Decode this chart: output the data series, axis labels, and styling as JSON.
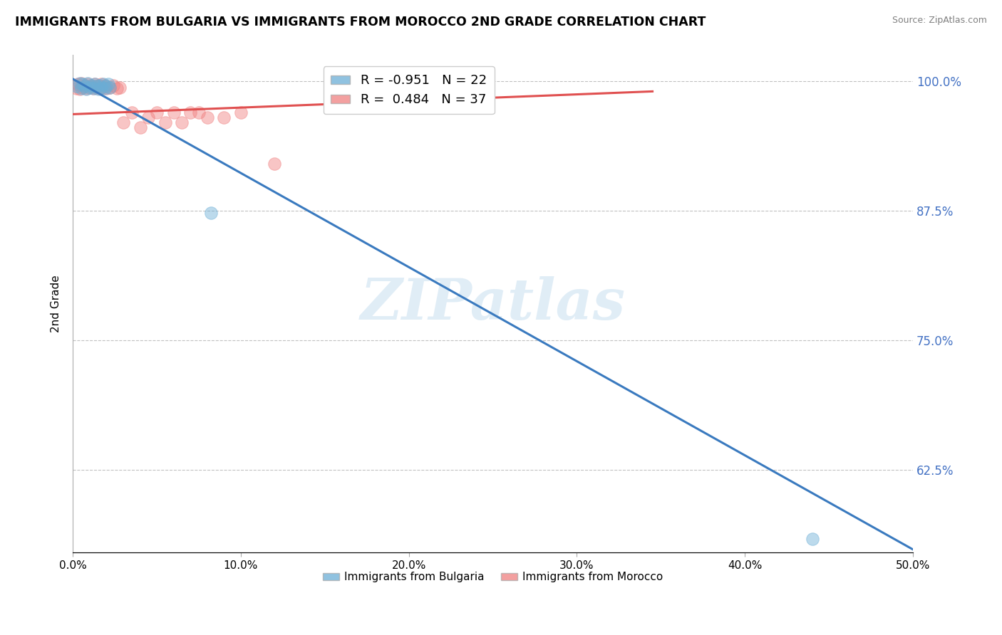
{
  "title": "IMMIGRANTS FROM BULGARIA VS IMMIGRANTS FROM MOROCCO 2ND GRADE CORRELATION CHART",
  "source": "Source: ZipAtlas.com",
  "ylabel": "2nd Grade",
  "xlim": [
    0.0,
    0.5
  ],
  "ylim": [
    0.545,
    1.025
  ],
  "yticks": [
    0.625,
    0.75,
    0.875,
    1.0
  ],
  "ytick_labels": [
    "62.5%",
    "75.0%",
    "87.5%",
    "100.0%"
  ],
  "xticks": [
    0.0,
    0.1,
    0.2,
    0.3,
    0.4,
    0.5
  ],
  "xtick_labels": [
    "0.0%",
    "10.0%",
    "20.0%",
    "30.0%",
    "40.0%",
    "50.0%"
  ],
  "bulgaria_R": -0.951,
  "bulgaria_N": 22,
  "morocco_R": 0.484,
  "morocco_N": 37,
  "bulgaria_color": "#6baed6",
  "morocco_color": "#f08080",
  "bulgaria_line_color": "#3a7abf",
  "morocco_line_color": "#e05050",
  "watermark": "ZIPatlas",
  "legend_label_bulgaria": "Immigrants from Bulgaria",
  "legend_label_morocco": "Immigrants from Morocco",
  "bulgaria_x": [
    0.002,
    0.004,
    0.005,
    0.006,
    0.007,
    0.008,
    0.009,
    0.01,
    0.011,
    0.012,
    0.013,
    0.014,
    0.015,
    0.016,
    0.017,
    0.018,
    0.019,
    0.02,
    0.021,
    0.022,
    0.082,
    0.44
  ],
  "bulgaria_y": [
    0.995,
    0.998,
    0.993,
    0.997,
    0.995,
    0.992,
    0.998,
    0.994,
    0.996,
    0.993,
    0.997,
    0.995,
    0.992,
    0.996,
    0.994,
    0.997,
    0.993,
    0.995,
    0.997,
    0.994,
    0.873,
    0.558
  ],
  "bulgaria_line_x": [
    0.0,
    0.5
  ],
  "bulgaria_line_y": [
    1.002,
    0.548
  ],
  "morocco_x": [
    0.002,
    0.003,
    0.004,
    0.005,
    0.006,
    0.007,
    0.008,
    0.009,
    0.01,
    0.011,
    0.012,
    0.013,
    0.014,
    0.015,
    0.016,
    0.017,
    0.018,
    0.019,
    0.02,
    0.022,
    0.024,
    0.026,
    0.028,
    0.03,
    0.035,
    0.04,
    0.045,
    0.05,
    0.055,
    0.06,
    0.065,
    0.07,
    0.075,
    0.08,
    0.09,
    0.1,
    0.12
  ],
  "morocco_y": [
    0.993,
    0.997,
    0.992,
    0.998,
    0.994,
    0.996,
    0.993,
    0.997,
    0.994,
    0.996,
    0.993,
    0.997,
    0.994,
    0.996,
    0.993,
    0.997,
    0.994,
    0.996,
    0.993,
    0.994,
    0.996,
    0.993,
    0.994,
    0.96,
    0.97,
    0.955,
    0.965,
    0.97,
    0.96,
    0.97,
    0.96,
    0.97,
    0.97,
    0.965,
    0.965,
    0.97,
    0.92
  ],
  "morocco_line_x": [
    0.0,
    0.345
  ],
  "morocco_line_y": [
    0.968,
    0.99
  ]
}
